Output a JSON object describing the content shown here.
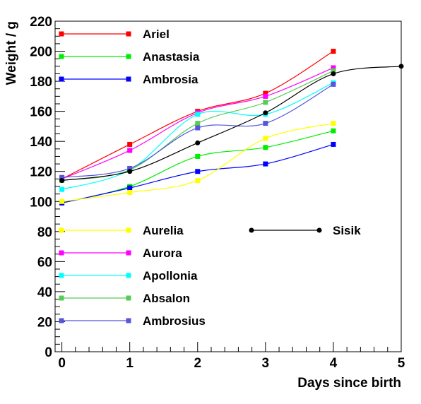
{
  "chart_data": {
    "type": "line",
    "title": "",
    "xlabel": "Days since birth",
    "ylabel": "Weight / g",
    "xlim": [
      -0.1,
      5
    ],
    "ylim": [
      0,
      220
    ],
    "x_ticks": [
      0,
      1,
      2,
      3,
      4,
      5
    ],
    "y_ticks": [
      0,
      20,
      40,
      60,
      80,
      100,
      120,
      140,
      160,
      180,
      200,
      220
    ],
    "grid": false,
    "series": [
      {
        "name": "Ariel",
        "color": "#ff0000",
        "marker": "square",
        "x": [
          0,
          1,
          2,
          3,
          4
        ],
        "y": [
          115,
          138,
          160,
          172,
          200
        ]
      },
      {
        "name": "Anastasia",
        "color": "#00ee00",
        "marker": "square",
        "x": [
          0,
          1,
          2,
          3,
          4
        ],
        "y": [
          99,
          110,
          130,
          136,
          147
        ]
      },
      {
        "name": "Ambrosia",
        "color": "#0000ff",
        "marker": "square",
        "x": [
          0,
          1,
          2,
          3,
          4
        ],
        "y": [
          99,
          109,
          120,
          125,
          138
        ]
      },
      {
        "name": "Aurelia",
        "color": "#ffff00",
        "marker": "square",
        "x": [
          0,
          1,
          2,
          3,
          4
        ],
        "y": [
          100,
          106,
          114,
          142,
          152
        ]
      },
      {
        "name": "Aurora",
        "color": "#ff00ff",
        "marker": "square",
        "x": [
          0,
          1,
          2,
          3,
          4
        ],
        "y": [
          115,
          134,
          159,
          170,
          189
        ]
      },
      {
        "name": "Apollonia",
        "color": "#00ffff",
        "marker": "square",
        "x": [
          0,
          1,
          2,
          3,
          4
        ],
        "y": [
          108,
          121,
          158,
          158,
          179
        ]
      },
      {
        "name": "Absalon",
        "color": "#55cc55",
        "marker": "square",
        "x": [
          0,
          1,
          2,
          3,
          4
        ],
        "y": [
          114,
          121,
          152,
          166,
          187
        ]
      },
      {
        "name": "Ambrosius",
        "color": "#5555dd",
        "marker": "square",
        "x": [
          0,
          1,
          2,
          3,
          4
        ],
        "y": [
          116,
          122,
          149,
          152,
          178
        ]
      },
      {
        "name": "Sisik",
        "color": "#000000",
        "marker": "circle",
        "x": [
          0,
          1,
          2,
          3,
          4,
          5
        ],
        "y": [
          114,
          120,
          139,
          159,
          185,
          190
        ]
      }
    ],
    "legend": [
      {
        "group": "upper-left",
        "entries": [
          "Ariel",
          "Anastasia",
          "Ambrosia"
        ]
      },
      {
        "group": "lower-left",
        "entries": [
          "Aurelia",
          "Aurora",
          "Apollonia",
          "Absalon",
          "Ambrosius"
        ]
      },
      {
        "group": "lower-right",
        "entries": [
          "Sisik"
        ]
      }
    ]
  }
}
